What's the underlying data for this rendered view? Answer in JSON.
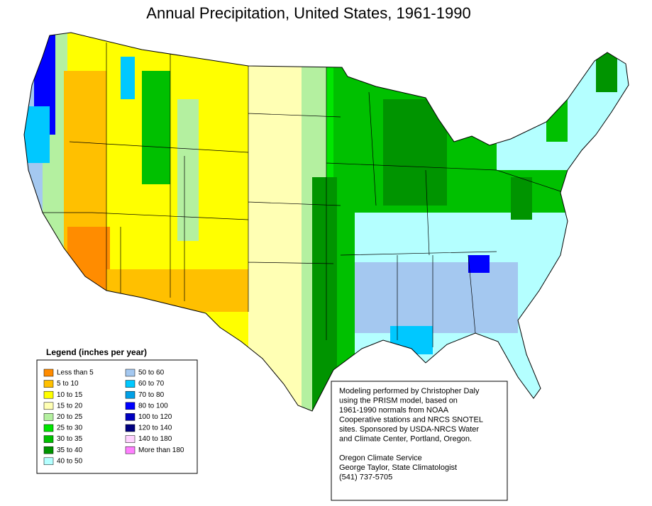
{
  "title": "Annual Precipitation, United States, 1961-1990",
  "legend": {
    "title": "Legend (inches per year)",
    "entries": [
      {
        "label": "Less than 5",
        "color": "#ff8c00"
      },
      {
        "label": "5 to 10",
        "color": "#ffc000"
      },
      {
        "label": "10 to 15",
        "color": "#ffff00"
      },
      {
        "label": "15 to 20",
        "color": "#ffffb4"
      },
      {
        "label": "20 to 25",
        "color": "#b4f0a0"
      },
      {
        "label": "25 to 30",
        "color": "#00e600"
      },
      {
        "label": "30 to 35",
        "color": "#00c000"
      },
      {
        "label": "35 to 40",
        "color": "#009400"
      },
      {
        "label": "40 to 50",
        "color": "#b4ffff"
      },
      {
        "label": "50 to 60",
        "color": "#a4c8f0"
      },
      {
        "label": "60 to 70",
        "color": "#00c8ff"
      },
      {
        "label": "70 to 80",
        "color": "#00a0e6"
      },
      {
        "label": "80 to 100",
        "color": "#0000ff"
      },
      {
        "label": "100 to 120",
        "color": "#0000c0"
      },
      {
        "label": "120 to 140",
        "color": "#000080"
      },
      {
        "label": "140 to 180",
        "color": "#ffd2ff"
      },
      {
        "label": "More than 180",
        "color": "#ff80ff"
      }
    ]
  },
  "note": {
    "credit": [
      "Modeling performed by Christopher Daly",
      "using the PRISM model, based on",
      "1961-1990 normals from NOAA",
      "Cooperative stations and NRCS SNOTEL",
      "sites.  Sponsored by USDA-NRCS Water",
      "and Climate Center, Portland, Oregon."
    ],
    "contact": [
      "Oregon Climate Service",
      "George Taylor, State Climatologist",
      "(541) 737-5705"
    ]
  }
}
